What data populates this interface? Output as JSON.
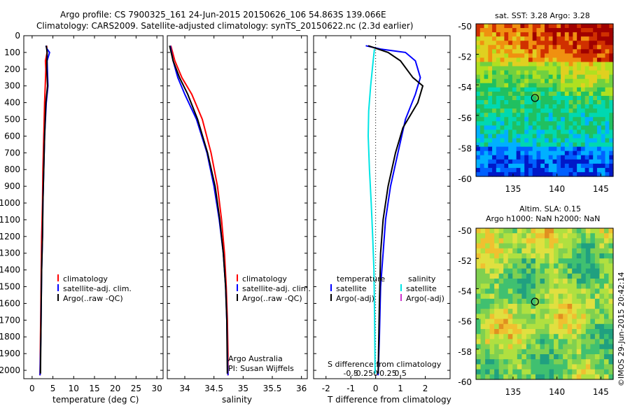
{
  "header": {
    "line1": "Argo profile: CS 7900325_161 24-Jun-2015 20150626_106 54.863S 139.066E",
    "line2": "Climatology: CARS2009. Satellite-adjusted climatology: synTS_20150622.nc (2.3d earlier)"
  },
  "colors": {
    "climatology": "#ff0000",
    "satellite": "#0000ff",
    "argo": "#000000",
    "sal_satellite": "#00e5e5",
    "sal_argo": "#cc33cc"
  },
  "depth_axis": {
    "ticks": [
      0,
      100,
      200,
      300,
      400,
      500,
      600,
      700,
      800,
      900,
      1000,
      1100,
      1200,
      1300,
      1400,
      1500,
      1600,
      1700,
      1800,
      1900,
      2000
    ]
  },
  "chart_data": [
    {
      "type": "line",
      "id": "temperature",
      "xlabel": "temperature (deg C)",
      "xlim": [
        -2,
        31.5
      ],
      "xticks": [
        0,
        5,
        10,
        15,
        20,
        25,
        30
      ],
      "ylim": [
        2050,
        0
      ],
      "legend": [
        "climatology",
        "satellite-adj. clim.",
        "Argo(..raw -QC)"
      ],
      "series": [
        {
          "name": "climatology",
          "color_key": "climatology",
          "x": [
            3.5,
            3.6,
            3.2,
            3.3,
            3.0,
            2.8,
            2.6,
            2.5,
            2.3,
            2.2,
            2.1,
            2.0,
            1.9
          ],
          "y": [
            60,
            100,
            150,
            200,
            400,
            600,
            800,
            1000,
            1200,
            1400,
            1600,
            1800,
            2030
          ]
        },
        {
          "name": "satellite-adj. clim.",
          "color_key": "satellite",
          "x": [
            3.3,
            3.6,
            4.2,
            3.6,
            3.8,
            3.4,
            3.0,
            2.8,
            2.6,
            2.5,
            2.3,
            2.2,
            2.1,
            2.0,
            1.9
          ],
          "y": [
            60,
            80,
            100,
            150,
            300,
            400,
            600,
            800,
            1000,
            1200,
            1400,
            1600,
            1800,
            1900,
            2030
          ]
        },
        {
          "name": "Argo(..raw -QC)",
          "color_key": "argo",
          "x": [
            3.4,
            3.6,
            3.5,
            3.7,
            3.3,
            3.0,
            2.8,
            2.6,
            2.5,
            2.3,
            2.2,
            2.1,
            2.0
          ],
          "y": [
            60,
            100,
            200,
            300,
            400,
            600,
            800,
            1000,
            1200,
            1400,
            1600,
            1800,
            2020
          ]
        }
      ]
    },
    {
      "type": "line",
      "id": "salinity",
      "xlabel": "salinity",
      "xlim": [
        33.7,
        36.1
      ],
      "xticks": [
        34,
        34.5,
        35,
        35.5,
        36
      ],
      "ylim": [
        2050,
        0
      ],
      "legend": [
        "climatology",
        "satellite-adj. clim.",
        "Argo(..raw -QC)"
      ],
      "annotation": [
        "Argo Australia",
        "PI: Susan Wijffels"
      ],
      "series": [
        {
          "name": "climatology",
          "color_key": "climatology",
          "x": [
            33.76,
            33.83,
            33.95,
            34.12,
            34.3,
            34.45,
            34.56,
            34.63,
            34.68,
            34.71,
            34.73,
            34.74,
            34.74
          ],
          "y": [
            60,
            150,
            250,
            350,
            500,
            700,
            900,
            1100,
            1300,
            1500,
            1700,
            1900,
            2030
          ]
        },
        {
          "name": "satellite-adj. clim.",
          "color_key": "satellite",
          "x": [
            33.75,
            33.8,
            33.88,
            34.0,
            34.2,
            34.38,
            34.5,
            34.59,
            34.66,
            34.7,
            34.72,
            34.73,
            34.74
          ],
          "y": [
            60,
            150,
            250,
            350,
            500,
            700,
            900,
            1100,
            1300,
            1500,
            1700,
            1900,
            2030
          ]
        },
        {
          "name": "Argo(..raw -QC)",
          "color_key": "argo",
          "x": [
            33.74,
            33.8,
            33.91,
            34.05,
            34.22,
            34.39,
            34.52,
            34.6,
            34.66,
            34.7,
            34.72,
            34.73
          ],
          "y": [
            60,
            150,
            250,
            350,
            500,
            700,
            900,
            1100,
            1300,
            1500,
            1700,
            2020
          ]
        }
      ]
    },
    {
      "type": "line",
      "id": "difference",
      "xlabel": "T difference from climatology",
      "title_inside": "S difference from climatology",
      "xlim": [
        -2.5,
        3.0
      ],
      "xticks": [
        -2,
        -1,
        0,
        1,
        2
      ],
      "s_xticks": [
        "-0.5",
        "-0.25",
        "0",
        "0.25",
        "0.5"
      ],
      "s_xtick_values": [
        -0.5,
        -0.25,
        0,
        0.25,
        0.5
      ],
      "ylim": [
        2050,
        0
      ],
      "legend": {
        "left_header": "temperature",
        "right_header": "salinity",
        "left": [
          "satellite",
          "Argo(-adj)"
        ],
        "right": [
          "satellite",
          "Argo(-adj)"
        ]
      },
      "series": [
        {
          "name": "temperature satellite",
          "color_key": "satellite",
          "x": [
            -0.4,
            0.2,
            1.2,
            1.6,
            1.8,
            1.6,
            1.2,
            0.9,
            0.6,
            0.4,
            0.3,
            0.2,
            0.15,
            0.1
          ],
          "y": [
            60,
            80,
            100,
            150,
            250,
            350,
            500,
            700,
            900,
            1100,
            1300,
            1500,
            1800,
            2030
          ]
        },
        {
          "name": "temperature Argo(-adj)",
          "color_key": "argo",
          "x": [
            -0.3,
            0.5,
            1.0,
            1.5,
            1.9,
            1.7,
            1.1,
            0.8,
            0.5,
            0.3,
            0.2,
            0.15,
            0.1
          ],
          "y": [
            60,
            100,
            150,
            250,
            300,
            400,
            550,
            700,
            900,
            1100,
            1300,
            1600,
            2020
          ]
        },
        {
          "name": "salinity satellite",
          "color_key": "sal_satellite",
          "x": [
            -0.05,
            -0.1,
            -0.2,
            -0.28,
            -0.3,
            -0.25,
            -0.18,
            -0.12,
            -0.07,
            -0.04,
            -0.02
          ],
          "y": [
            80,
            150,
            300,
            450,
            600,
            800,
            1000,
            1200,
            1400,
            1700,
            2020
          ]
        }
      ]
    }
  ],
  "map_top": {
    "title": "sat. SST: 3.28 Argo: 3.28",
    "xticks": [
      "135",
      "140",
      "145"
    ],
    "yticks": [
      "-50",
      "-52",
      "-54",
      "-56",
      "-58",
      "-60"
    ]
  },
  "map_bottom": {
    "title1": "Altim. SLA: 0.15",
    "title2": "Argo h1000: NaN h2000: NaN",
    "xticks": [
      "135",
      "140",
      "145"
    ],
    "yticks": [
      "-50",
      "-52",
      "-54",
      "-56",
      "-58",
      "-60"
    ]
  },
  "credit": "©IMOS 29-Jun-2015 20:42:14"
}
